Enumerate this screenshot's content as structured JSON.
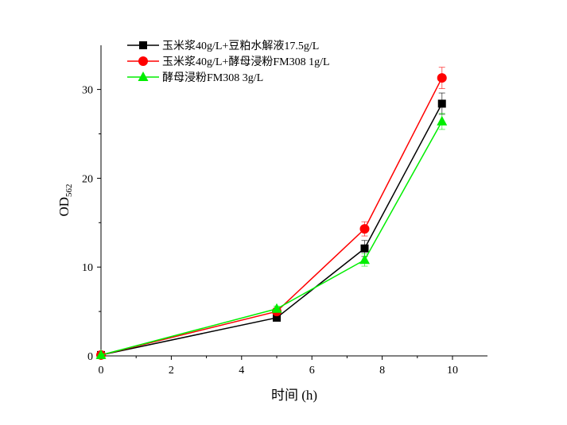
{
  "chart_data": {
    "type": "line",
    "title": "",
    "xlabel": "时间 (h)",
    "ylabel_main": "OD",
    "ylabel_sub": "562",
    "xlim": [
      0,
      11
    ],
    "ylim": [
      0,
      35
    ],
    "xticks": [
      0,
      2,
      4,
      6,
      8,
      10
    ],
    "yticks": [
      0,
      10,
      20,
      30
    ],
    "grid": false,
    "legend_position": "top-left",
    "series": [
      {
        "name": "玉米浆40g/L+豆粕水解液17.5g/L",
        "color": "#000000",
        "marker": "square",
        "x": [
          0,
          5,
          7.5,
          9.7
        ],
        "y": [
          0.1,
          4.3,
          12.1,
          28.4
        ],
        "err": [
          0,
          0.3,
          0.9,
          1.2
        ]
      },
      {
        "name": "玉米浆40g/L+酵母浸粉FM308 1g/L",
        "color": "#ff0000",
        "marker": "circle",
        "x": [
          0,
          5,
          7.5,
          9.7
        ],
        "y": [
          0.1,
          5.0,
          14.3,
          31.3
        ],
        "err": [
          0,
          0.3,
          0.8,
          1.2
        ]
      },
      {
        "name": "酵母浸粉FM308 3g/L",
        "color": "#00ee00",
        "marker": "triangle",
        "x": [
          0,
          5,
          7.5,
          9.7
        ],
        "y": [
          0.1,
          5.3,
          10.8,
          26.4
        ],
        "err": [
          0,
          0.3,
          0.7,
          0.9
        ]
      }
    ]
  }
}
